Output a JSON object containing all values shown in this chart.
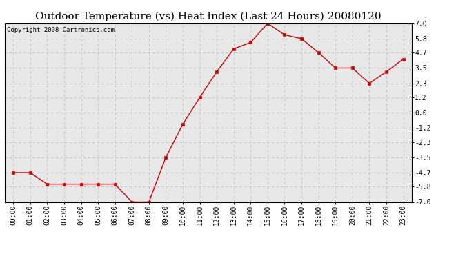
{
  "title": "Outdoor Temperature (vs) Heat Index (Last 24 Hours) 20080120",
  "copyright_text": "Copyright 2008 Cartronics.com",
  "hours": [
    "00:00",
    "01:00",
    "02:00",
    "03:00",
    "04:00",
    "05:00",
    "06:00",
    "07:00",
    "08:00",
    "09:00",
    "10:00",
    "11:00",
    "12:00",
    "13:00",
    "14:00",
    "15:00",
    "16:00",
    "17:00",
    "18:00",
    "19:00",
    "20:00",
    "21:00",
    "22:00",
    "23:00"
  ],
  "values": [
    -4.7,
    -4.7,
    -5.6,
    -5.6,
    -5.6,
    -5.6,
    -5.6,
    -7.0,
    -7.0,
    -3.5,
    -0.9,
    1.2,
    3.2,
    5.0,
    5.5,
    7.0,
    6.1,
    5.8,
    4.7,
    3.5,
    3.5,
    2.3,
    3.2,
    4.2
  ],
  "ylim": [
    -7.0,
    7.0
  ],
  "yticks": [
    -7.0,
    -5.8,
    -4.7,
    -3.5,
    -2.3,
    -1.2,
    0.0,
    1.2,
    2.3,
    3.5,
    4.7,
    5.8,
    7.0
  ],
  "ytick_labels": [
    "-7.0",
    "-5.8",
    "-4.7",
    "-3.5",
    "-2.3",
    "-1.2",
    "0.0",
    "1.2",
    "2.3",
    "3.5",
    "4.7",
    "5.8",
    "7.0"
  ],
  "line_color": "#cc0000",
  "marker": "s",
  "marker_size": 2.5,
  "background_color": "#ffffff",
  "plot_bg_color": "#e8e8e8",
  "grid_color": "#bbbbbb",
  "title_fontsize": 11,
  "tick_fontsize": 7,
  "copyright_fontsize": 6.5
}
